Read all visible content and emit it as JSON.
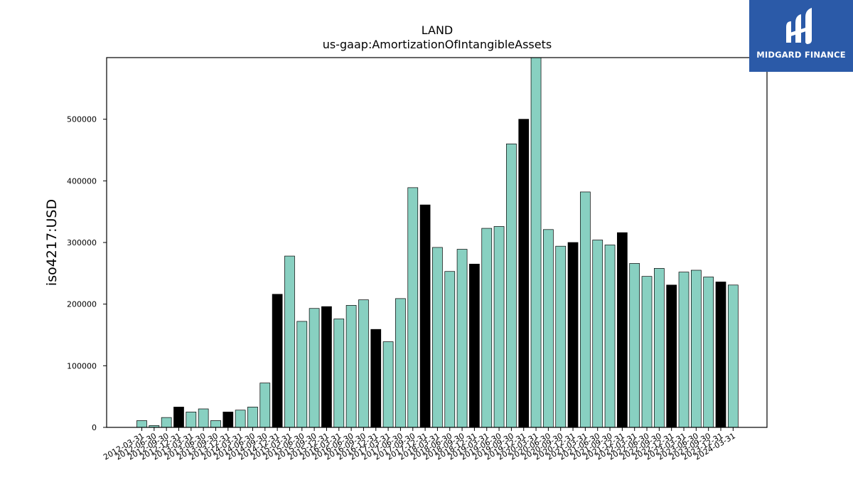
{
  "branding": {
    "logo_text": "MIDGARD FINANCE"
  },
  "chart_data": {
    "type": "bar",
    "title": "LAND",
    "subtitle": "us-gaap:AmortizationOfIntangibleAssets",
    "xlabel": "",
    "ylabel": "iso4217:USD",
    "ylim": [
      0,
      600000
    ],
    "yticks": [
      0,
      100000,
      200000,
      300000,
      400000,
      500000
    ],
    "grid": false,
    "colors": {
      "default": "#88d0c1",
      "highlight": "#000000",
      "edge": "#000000"
    },
    "categories": [
      "2012-03-31",
      "2012-06-30",
      "2012-09-30",
      "2012-12-31",
      "2013-03-31",
      "2013-06-30",
      "2013-09-30",
      "2013-12-31",
      "2014-03-31",
      "2014-06-30",
      "2014-09-30",
      "2014-12-31",
      "2015-03-31",
      "2015-06-30",
      "2015-09-30",
      "2015-12-31",
      "2016-03-31",
      "2016-06-30",
      "2016-09-30",
      "2016-12-31",
      "2017-03-31",
      "2017-06-30",
      "2017-09-30",
      "2017-12-31",
      "2018-03-31",
      "2018-06-30",
      "2018-09-30",
      "2018-12-31",
      "2019-03-31",
      "2019-06-30",
      "2019-09-30",
      "2019-12-31",
      "2020-03-31",
      "2020-06-30",
      "2020-09-30",
      "2020-12-31",
      "2021-03-31",
      "2021-06-30",
      "2021-09-30",
      "2021-12-31",
      "2022-03-31",
      "2022-06-30",
      "2022-09-30",
      "2022-12-31",
      "2023-03-31",
      "2023-06-30",
      "2023-09-30",
      "2023-12-31",
      "2024-03-31"
    ],
    "values": [
      11000,
      3000,
      16000,
      33000,
      25000,
      30000,
      11000,
      25000,
      28000,
      33000,
      72000,
      216000,
      278000,
      172000,
      193000,
      196000,
      176000,
      198000,
      207000,
      159000,
      139000,
      209000,
      389000,
      361000,
      292000,
      253000,
      289000,
      265000,
      323000,
      326000,
      460000,
      500000,
      600000,
      321000,
      294000,
      300000,
      382000,
      304000,
      296000,
      316000,
      266000,
      245000,
      258000,
      231000,
      252000,
      255000,
      244000,
      236000,
      231000
    ],
    "highlighted": [
      false,
      false,
      false,
      true,
      false,
      false,
      false,
      true,
      false,
      false,
      false,
      true,
      false,
      false,
      false,
      true,
      false,
      false,
      false,
      true,
      false,
      false,
      false,
      true,
      false,
      false,
      false,
      true,
      false,
      false,
      false,
      true,
      false,
      false,
      false,
      true,
      false,
      false,
      false,
      true,
      false,
      false,
      false,
      true,
      false,
      false,
      false,
      true,
      false
    ]
  }
}
